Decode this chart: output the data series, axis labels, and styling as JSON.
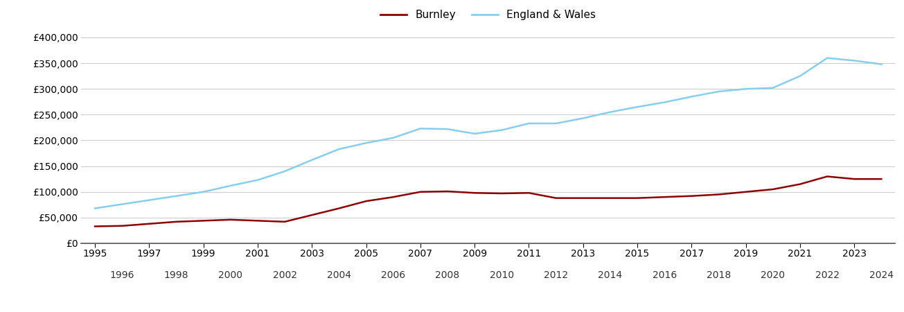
{
  "burnley_label": "Burnley",
  "ew_label": "England & Wales",
  "burnley_color": "#8B0000",
  "ew_color": "#87CEEB",
  "background_color": "#ffffff",
  "grid_color": "#cccccc",
  "years": [
    1995,
    1996,
    1997,
    1998,
    1999,
    2000,
    2001,
    2002,
    2003,
    2004,
    2005,
    2006,
    2007,
    2008,
    2009,
    2010,
    2011,
    2012,
    2013,
    2014,
    2015,
    2016,
    2017,
    2018,
    2019,
    2020,
    2021,
    2022,
    2023,
    2024
  ],
  "burnley": [
    33000,
    34000,
    38000,
    42000,
    44000,
    46000,
    44000,
    42000,
    55000,
    68000,
    82000,
    90000,
    100000,
    101000,
    98000,
    97000,
    98000,
    88000,
    88000,
    88000,
    88000,
    90000,
    92000,
    95000,
    100000,
    105000,
    115000,
    130000,
    125000,
    125000
  ],
  "england_wales": [
    68000,
    76000,
    84000,
    92000,
    100000,
    112000,
    123000,
    140000,
    162000,
    183000,
    195000,
    205000,
    223000,
    222000,
    213000,
    220000,
    233000,
    233000,
    243000,
    255000,
    265000,
    274000,
    285000,
    295000,
    300000,
    302000,
    325000,
    360000,
    355000,
    348000
  ],
  "ylim": [
    0,
    400000
  ],
  "yticks": [
    0,
    50000,
    100000,
    150000,
    200000,
    250000,
    300000,
    350000,
    400000
  ],
  "line_width": 1.8,
  "legend_fontsize": 11,
  "tick_fontsize": 10
}
